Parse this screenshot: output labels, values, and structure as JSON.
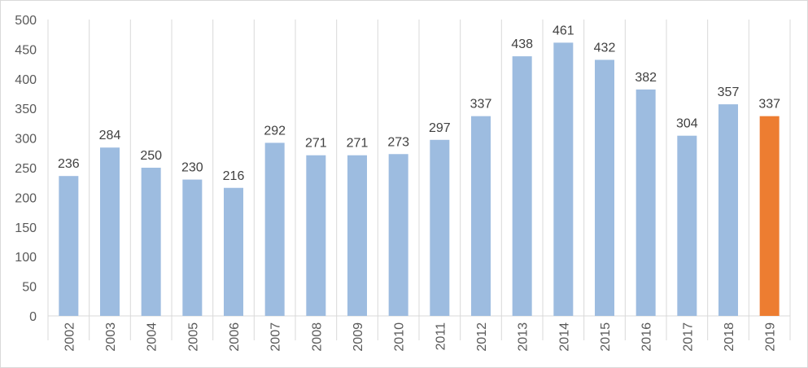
{
  "chart_data": {
    "type": "bar",
    "title": "",
    "xlabel": "",
    "ylabel": "",
    "categories": [
      "2002",
      "2003",
      "2004",
      "2005",
      "2006",
      "2007",
      "2008",
      "2009",
      "2010",
      "2011",
      "2012",
      "2013",
      "2014",
      "2015",
      "2016",
      "2017",
      "2018",
      "2019"
    ],
    "values": [
      236,
      284,
      250,
      230,
      216,
      292,
      271,
      271,
      273,
      297,
      337,
      438,
      461,
      432,
      382,
      304,
      357,
      337
    ],
    "ylim": [
      0,
      500
    ],
    "yticks": [
      0,
      50,
      100,
      150,
      200,
      250,
      300,
      350,
      400,
      450,
      500
    ],
    "grid": "vertical category separators",
    "legend": "none",
    "x_tick_rotation": "vertical",
    "colors": {
      "bar": "#9dbce0",
      "highlight_bar": "#ed7d31",
      "highlight_category": "2019",
      "grid": "#d9d9d9",
      "axis": "#d9d9d9",
      "text": "#595959"
    }
  }
}
